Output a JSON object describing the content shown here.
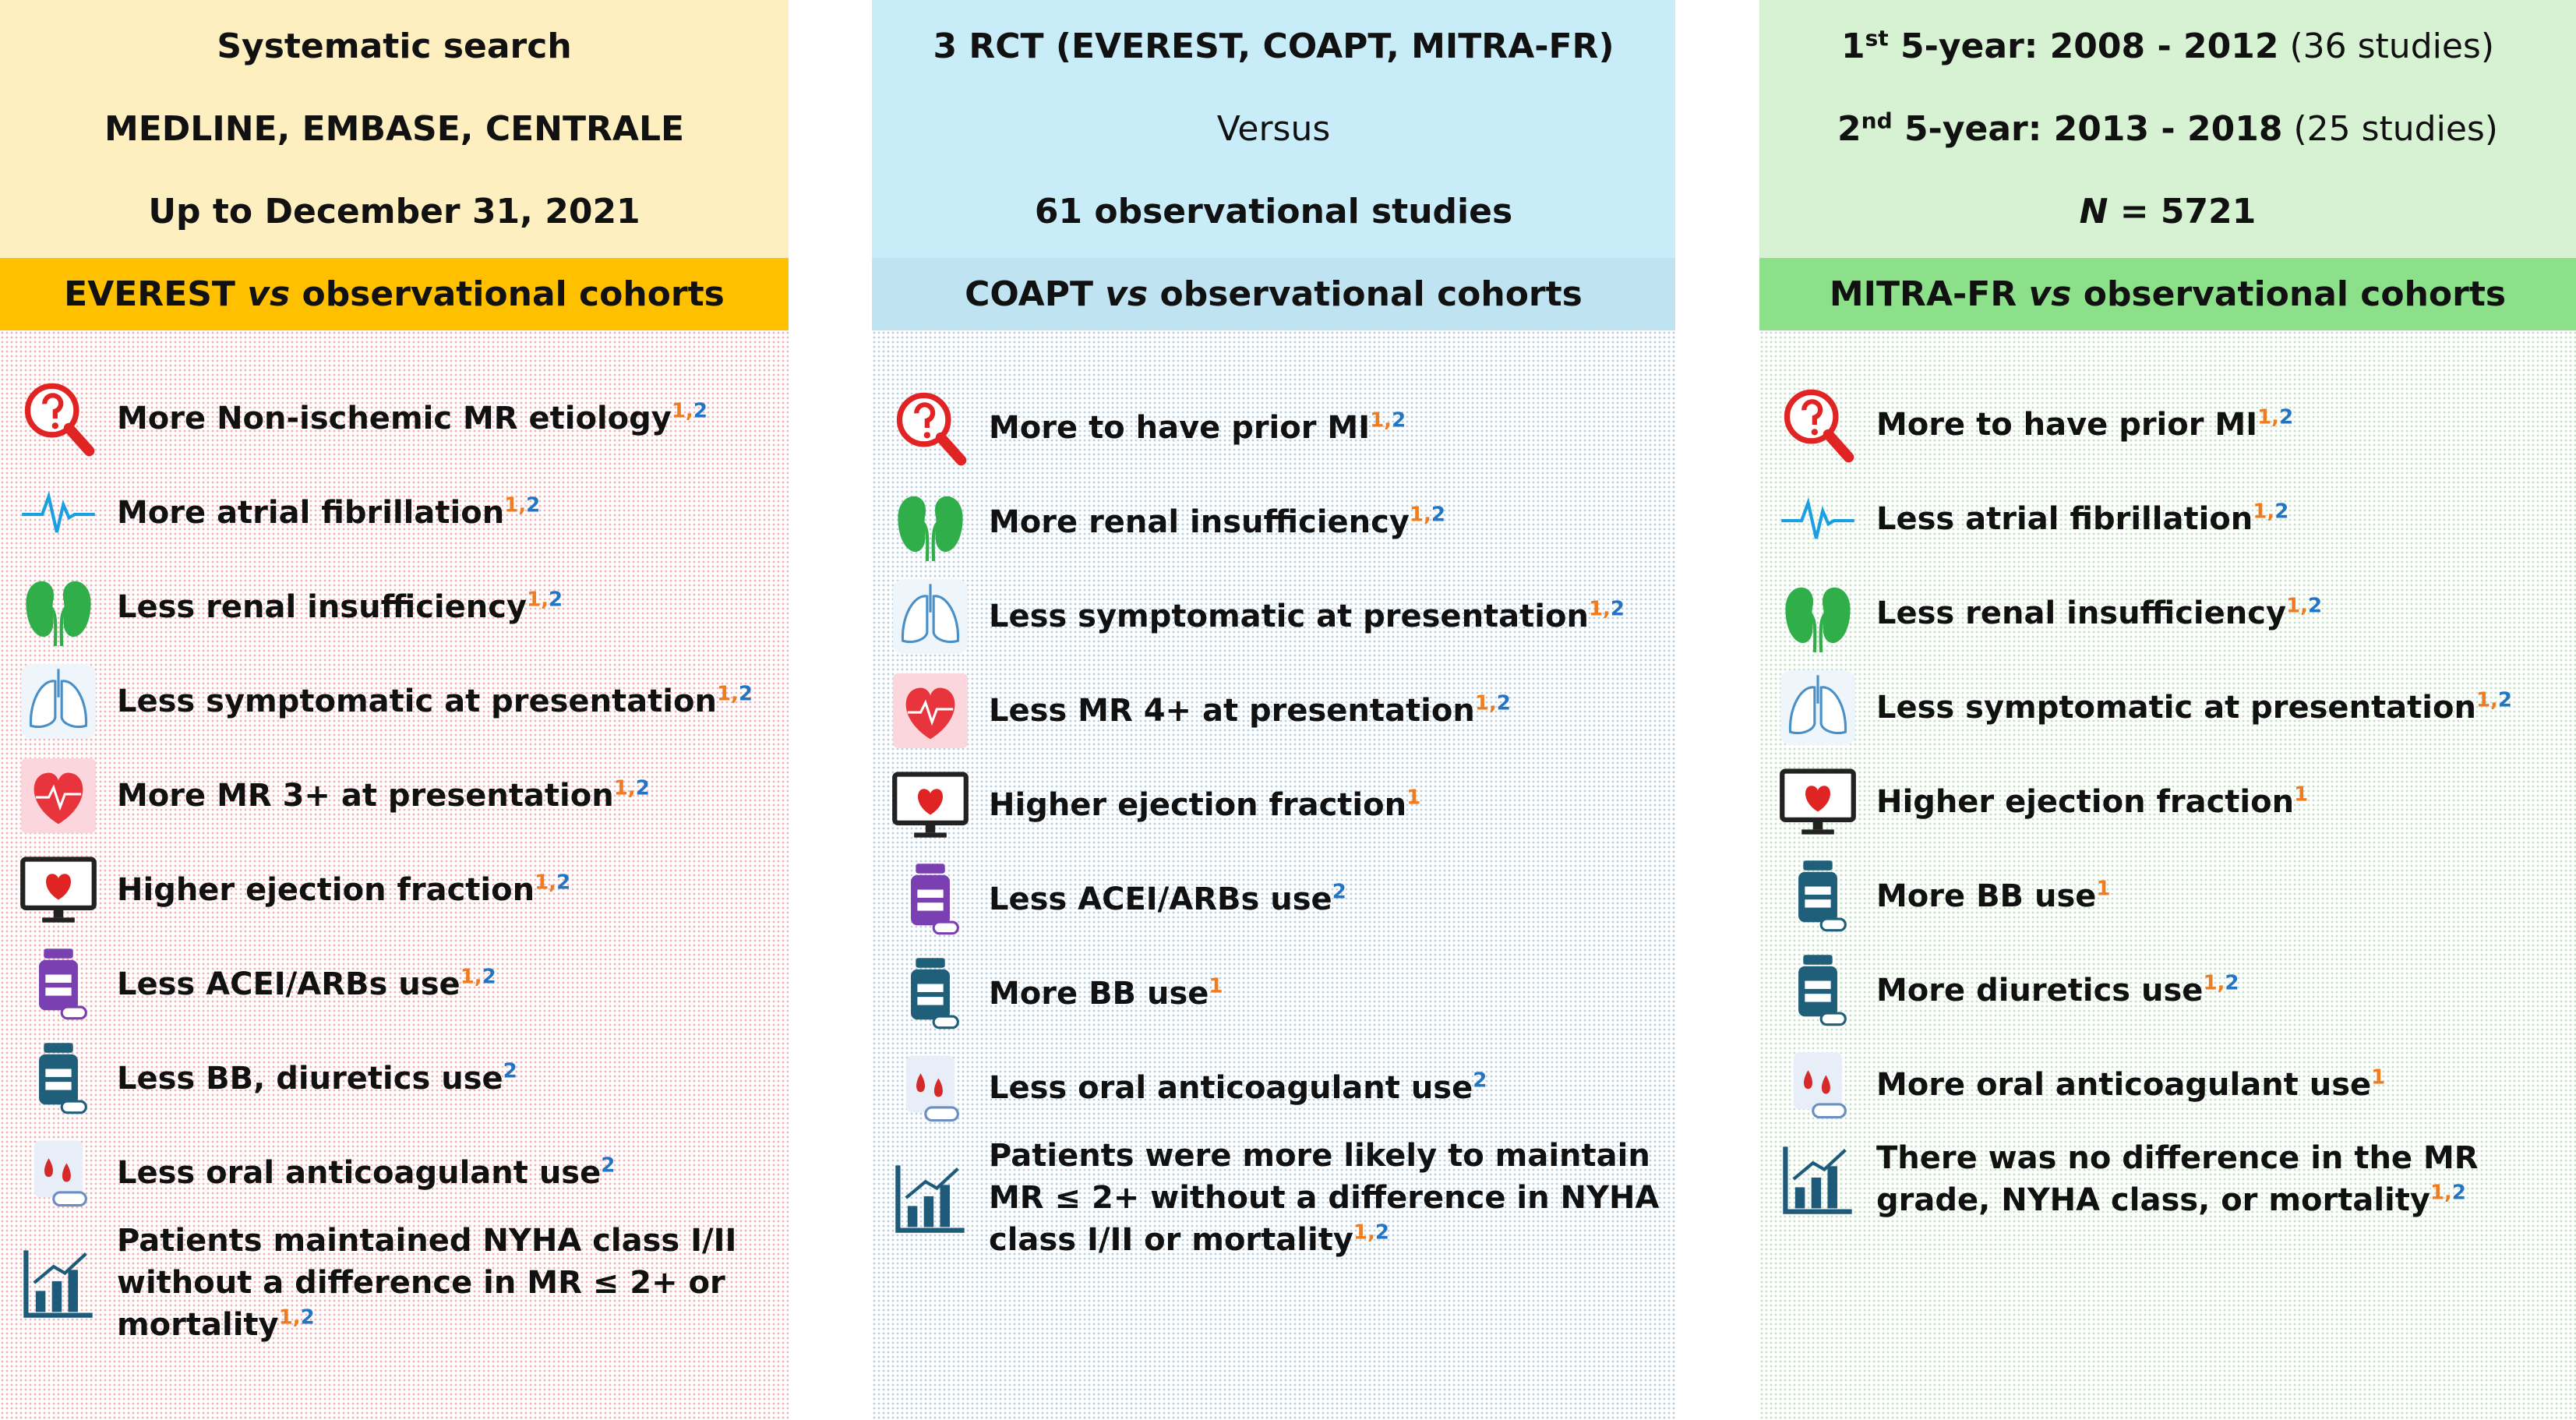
{
  "columns": [
    {
      "header": [
        [
          {
            "text": "Systematic search",
            "style": "b"
          }
        ],
        [
          {
            "text": "MEDLINE, EMBASE, CENTRALE",
            "style": "b"
          }
        ],
        [
          {
            "text": "Up to December 31, 2021",
            "style": "b"
          }
        ]
      ],
      "section": [
        {
          "text": "EVEREST ",
          "style": "b"
        },
        {
          "text": "vs",
          "style": "bi"
        },
        {
          "text": " observational cohorts",
          "style": "b"
        }
      ],
      "items": [
        {
          "text": "More Non-ischemic MR etiology",
          "sup": [
            {
              "text": "1,",
              "color": "#ee7d22"
            },
            {
              "text": "2",
              "color": "#2474c4"
            }
          ]
        },
        {
          "text": "More atrial fibrillation",
          "sup": [
            {
              "text": "1,",
              "color": "#ee7d22"
            },
            {
              "text": "2",
              "color": "#2474c4"
            }
          ]
        },
        {
          "text": "Less renal insufficiency",
          "sup": [
            {
              "text": "1,",
              "color": "#ee7d22"
            },
            {
              "text": "2",
              "color": "#2474c4"
            }
          ]
        },
        {
          "text": "Less symptomatic at presentation",
          "sup": [
            {
              "text": "1,",
              "color": "#ee7d22"
            },
            {
              "text": "2",
              "color": "#2474c4"
            }
          ]
        },
        {
          "text": "More MR 3+ at presentation",
          "sup": [
            {
              "text": "1,",
              "color": "#ee7d22"
            },
            {
              "text": "2",
              "color": "#2474c4"
            }
          ]
        },
        {
          "text": "Higher ejection fraction",
          "sup": [
            {
              "text": "1,",
              "color": "#ee7d22"
            },
            {
              "text": "2",
              "color": "#2474c4"
            }
          ]
        },
        {
          "text": "Less ACEI/ARBs use",
          "sup": [
            {
              "text": "1,",
              "color": "#ee7d22"
            },
            {
              "text": "2",
              "color": "#2474c4"
            }
          ]
        },
        {
          "text": "Less BB, diuretics use",
          "sup": [
            {
              "text": "2",
              "color": "#2474c4"
            }
          ]
        },
        {
          "text": "Less oral anticoagulant use",
          "sup": [
            {
              "text": "2",
              "color": "#2474c4"
            }
          ]
        },
        {
          "text": "Patients maintained NYHA class I/II  without a difference in MR ≤ 2+ or mortality",
          "sup": [
            {
              "text": "1,",
              "color": "#ee7d22"
            },
            {
              "text": "2",
              "color": "#2474c4"
            }
          ]
        }
      ]
    },
    {
      "header": [
        [
          {
            "text": "3 RCT (EVEREST, COAPT, MITRA-FR)",
            "style": "b"
          }
        ],
        [
          {
            "text": "Versus",
            "style": "n"
          }
        ],
        [
          {
            "text": "61 observational studies",
            "style": "b"
          }
        ]
      ],
      "section": [
        {
          "text": "COAPT ",
          "style": "b"
        },
        {
          "text": "vs",
          "style": "bi"
        },
        {
          "text": " observational cohorts",
          "style": "b"
        }
      ],
      "items": [
        {
          "text": "More to have prior MI",
          "sup": [
            {
              "text": "1,",
              "color": "#ee7d22"
            },
            {
              "text": "2",
              "color": "#2474c4"
            }
          ]
        },
        {
          "text": "More renal insufficiency",
          "sup": [
            {
              "text": "1,",
              "color": "#ee7d22"
            },
            {
              "text": "2",
              "color": "#2474c4"
            }
          ]
        },
        {
          "text": "Less symptomatic at presentation",
          "sup": [
            {
              "text": "1,",
              "color": "#ee7d22"
            },
            {
              "text": "2",
              "color": "#2474c4"
            }
          ]
        },
        {
          "text": "Less MR 4+ at presentation",
          "sup": [
            {
              "text": "1,",
              "color": "#ee7d22"
            },
            {
              "text": "2",
              "color": "#2474c4"
            }
          ]
        },
        {
          "text": "Higher ejection fraction",
          "sup": [
            {
              "text": "1",
              "color": "#ee7d22"
            }
          ]
        },
        {
          "text": "Less ACEI/ARBs use",
          "sup": [
            {
              "text": "2",
              "color": "#2474c4"
            }
          ]
        },
        {
          "text": "More BB use",
          "sup": [
            {
              "text": "1",
              "color": "#ee7d22"
            }
          ]
        },
        {
          "text": "Less oral anticoagulant use",
          "sup": [
            {
              "text": "2",
              "color": "#2474c4"
            }
          ]
        },
        {
          "text": "Patients were more likely to maintain MR ≤ 2+ without a difference in NYHA class I/II or mortality",
          "sup": [
            {
              "text": "1,",
              "color": "#ee7d22"
            },
            {
              "text": "2",
              "color": "#2474c4"
            }
          ]
        }
      ]
    },
    {
      "header": [
        [
          {
            "text": "1",
            "style": "b"
          },
          {
            "text": "st",
            "style": "bs"
          },
          {
            "text": " 5-year: 2008 - 2012",
            "style": "b"
          },
          {
            "text": " (36 studies)",
            "style": "n"
          }
        ],
        [
          {
            "text": "2",
            "style": "b"
          },
          {
            "text": "nd",
            "style": "bs"
          },
          {
            "text": " 5-year: 2013 - 2018",
            "style": "b"
          },
          {
            "text": " (25 studies)",
            "style": "n"
          }
        ],
        [
          {
            "text": "N",
            "style": "bi"
          },
          {
            "text": " = 5721",
            "style": "b"
          }
        ]
      ],
      "section": [
        {
          "text": "MITRA-FR ",
          "style": "b"
        },
        {
          "text": "vs",
          "style": "bi"
        },
        {
          "text": " observational cohorts",
          "style": "b"
        }
      ],
      "items": [
        {
          "text": "More to have prior MI",
          "sup": [
            {
              "text": "1,",
              "color": "#ee7d22"
            },
            {
              "text": "2",
              "color": "#2474c4"
            }
          ]
        },
        {
          "text": "Less atrial fibrillation",
          "sup": [
            {
              "text": "1,",
              "color": "#ee7d22"
            },
            {
              "text": "2",
              "color": "#2474c4"
            }
          ]
        },
        {
          "text": "Less renal insufficiency",
          "sup": [
            {
              "text": "1,",
              "color": "#ee7d22"
            },
            {
              "text": "2",
              "color": "#2474c4"
            }
          ]
        },
        {
          "text": "Less symptomatic at presentation",
          "sup": [
            {
              "text": "1,",
              "color": "#ee7d22"
            },
            {
              "text": "2",
              "color": "#2474c4"
            }
          ]
        },
        {
          "text": "Higher ejection fraction",
          "sup": [
            {
              "text": "1",
              "color": "#ee7d22"
            }
          ]
        },
        {
          "text": "More BB use",
          "sup": [
            {
              "text": "1",
              "color": "#ee7d22"
            }
          ]
        },
        {
          "text": "More diuretics use",
          "sup": [
            {
              "text": "1,",
              "color": "#ee7d22"
            },
            {
              "text": "2",
              "color": "#2474c4"
            }
          ]
        },
        {
          "text": "More oral anticoagulant use",
          "sup": [
            {
              "text": "1",
              "color": "#ee7d22"
            }
          ]
        },
        {
          "text": "There was no difference in the MR grade, NYHA class, or mortality",
          "sup": [
            {
              "text": "1,",
              "color": "#ee7d22"
            },
            {
              "text": "2",
              "color": "#2474c4"
            }
          ]
        }
      ]
    }
  ]
}
